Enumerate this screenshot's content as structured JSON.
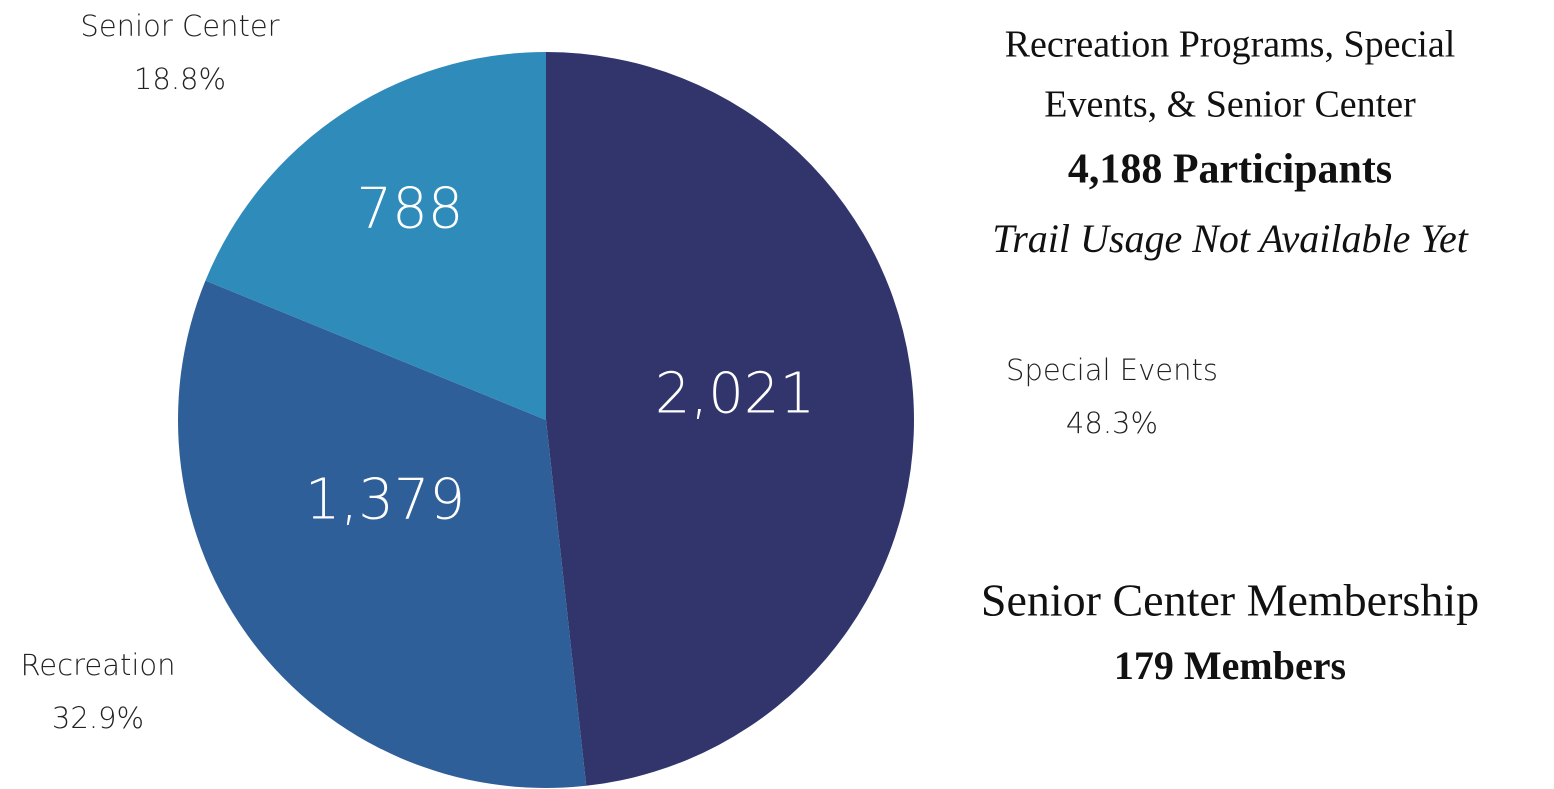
{
  "chart_data": {
    "type": "pie",
    "categories": [
      "Special Events",
      "Recreation",
      "Senior Center"
    ],
    "values": [
      2021,
      1379,
      788
    ],
    "value_labels": [
      "2,021",
      "1,379",
      "788"
    ],
    "percent_labels": [
      "48.3%",
      "32.9%",
      "18.8%"
    ],
    "colors": [
      "#31356b",
      "#2f5f98",
      "#2e8bba"
    ],
    "title_lines": [
      "Recreation Programs, Special",
      "Events, & Senior Center"
    ],
    "participants": "4,188 Participants",
    "note": "Trail Usage Not Available Yet",
    "membership_title": "Senior Center Membership",
    "members": "179 Members"
  }
}
